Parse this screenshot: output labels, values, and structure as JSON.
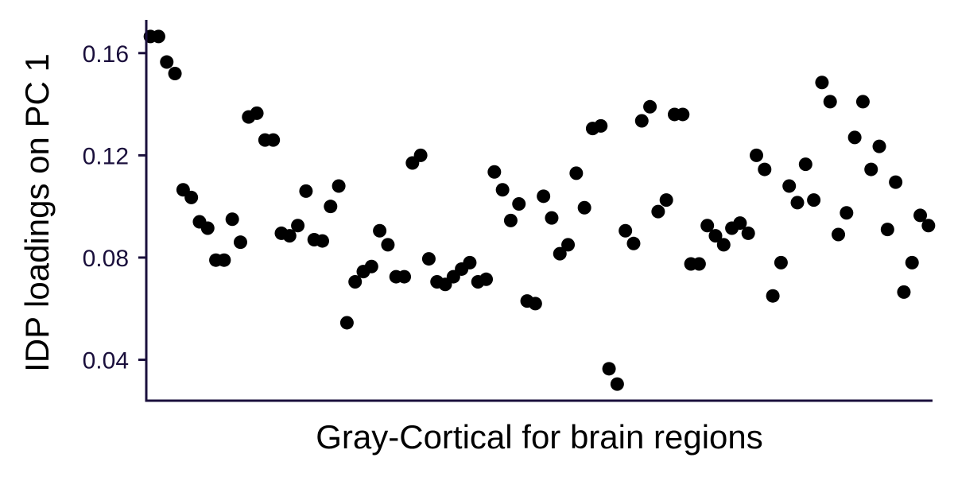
{
  "chart_data": {
    "type": "scatter",
    "title": "",
    "xlabel": "Gray-Cortical for brain regions",
    "ylabel": "IDP loadings on PC 1",
    "yticks": [
      "0.04",
      "0.08",
      "0.12",
      "0.16"
    ],
    "ylim": [
      0.024,
      0.173
    ],
    "xlim": [
      0.5,
      96.5
    ],
    "grid": false,
    "legend": "none",
    "colors": {
      "axis": "#1a0f3c",
      "point": "#000000",
      "tick_text": "#1a0f3c"
    },
    "series": [
      {
        "x": [
          1,
          2,
          3,
          4,
          5,
          6,
          7,
          8,
          9,
          10,
          11,
          12,
          13,
          14,
          15,
          16,
          17,
          18,
          19,
          20,
          21,
          22,
          23,
          24,
          25,
          26,
          27,
          28,
          29,
          30,
          31,
          32,
          33,
          34,
          35,
          36,
          37,
          38,
          39,
          40,
          41,
          42,
          43,
          44,
          45,
          46,
          47,
          48,
          49,
          50,
          51,
          52,
          53,
          54,
          55,
          56,
          57,
          58,
          59,
          60,
          61,
          62,
          63,
          64,
          65,
          66,
          67,
          68,
          69,
          70,
          71,
          72,
          73,
          74,
          75,
          76,
          77,
          78,
          79,
          80,
          81,
          82,
          83,
          84,
          85,
          86,
          87,
          88,
          89,
          90,
          91,
          92,
          93,
          94,
          95,
          96
        ],
        "values": [
          0.1665,
          0.1665,
          0.1565,
          0.152,
          0.1065,
          0.1035,
          0.094,
          0.0915,
          0.079,
          0.079,
          0.095,
          0.086,
          0.135,
          0.1365,
          0.126,
          0.126,
          0.0895,
          0.0885,
          0.0925,
          0.106,
          0.087,
          0.0865,
          0.1,
          0.108,
          0.0545,
          0.0705,
          0.0745,
          0.0765,
          0.0905,
          0.085,
          0.0725,
          0.0725,
          0.117,
          0.12,
          0.0795,
          0.0705,
          0.0695,
          0.0725,
          0.0755,
          0.078,
          0.0705,
          0.0715,
          0.1135,
          0.1065,
          0.0945,
          0.101,
          0.063,
          0.062,
          0.104,
          0.0955,
          0.0815,
          0.085,
          0.113,
          0.0995,
          0.1305,
          0.1315,
          0.0365,
          0.0305,
          0.0905,
          0.0855,
          0.1335,
          0.139,
          0.098,
          0.1025,
          0.136,
          0.136,
          0.0775,
          0.0775,
          0.0925,
          0.0885,
          0.085,
          0.0915,
          0.0935,
          0.0895,
          0.12,
          0.1145,
          0.065,
          0.078,
          0.108,
          0.1015,
          0.1165,
          0.1025,
          0.1485,
          0.141,
          0.089,
          0.0975,
          0.127,
          0.141,
          0.1145,
          0.1235,
          0.091,
          0.1095,
          0.0665,
          0.078,
          0.0965,
          0.0925
        ]
      }
    ]
  }
}
